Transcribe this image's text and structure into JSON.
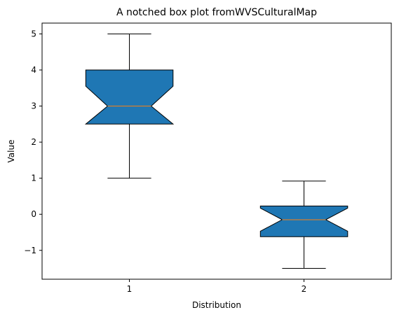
{
  "chart_data": {
    "type": "boxplot",
    "title": "A notched box plot fromWVSCulturalMap",
    "xlabel": "Distribution",
    "ylabel": "Value",
    "ylim": [
      -1.8,
      5.3
    ],
    "xlim": [
      0.5,
      2.5
    ],
    "yticks": [
      -1,
      0,
      1,
      2,
      3,
      4,
      5
    ],
    "ytick_labels": [
      "−1",
      "0",
      "1",
      "2",
      "3",
      "4",
      "5"
    ],
    "categories": [
      "1",
      "2"
    ],
    "notched": true,
    "grid": false,
    "colors": {
      "box_fill": "#1f77b4",
      "median": "#ff7f0e",
      "edge": "#000000"
    },
    "boxes": [
      {
        "name": "1",
        "whisker_low": 1.0,
        "q1": 2.5,
        "median": 3.0,
        "q3": 4.0,
        "whisker_high": 5.0,
        "notch_low": 2.5,
        "notch_high": 3.55
      },
      {
        "name": "2",
        "whisker_low": -1.5,
        "q1": -0.62,
        "median": -0.15,
        "q3": 0.23,
        "whisker_high": 0.92,
        "notch_low": -0.47,
        "notch_high": 0.17
      }
    ]
  }
}
